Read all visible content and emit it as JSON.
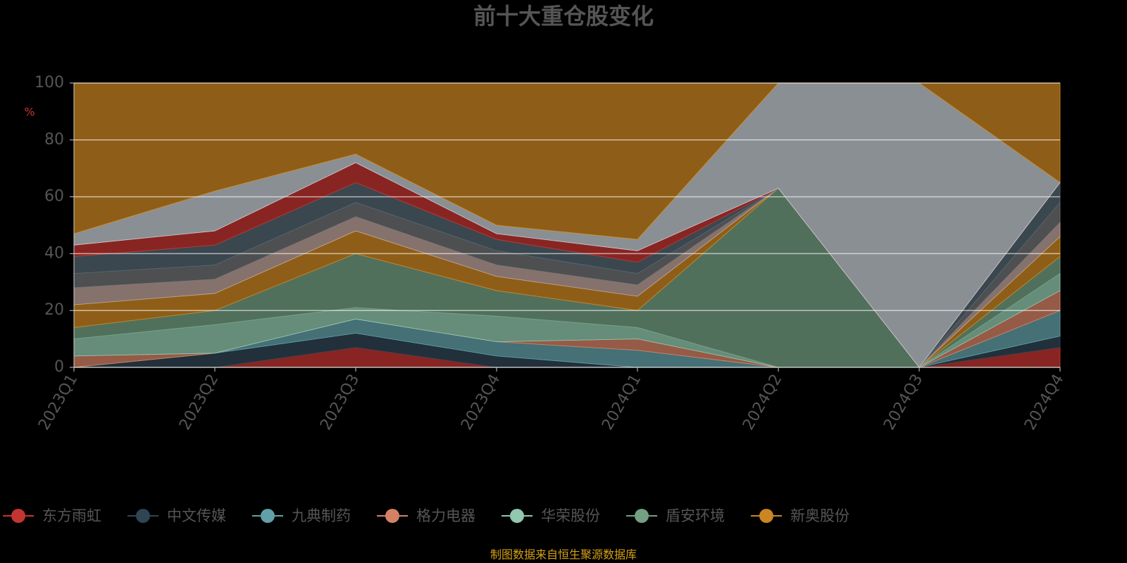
{
  "chart_data": {
    "type": "stacked-area",
    "title": "前十大重仓股变化",
    "y_label": "%",
    "source": "制图数据来自恒生聚源数据库",
    "categories": [
      "2023Q1",
      "2023Q2",
      "2023Q3",
      "2023Q4",
      "2024Q1",
      "2024Q2",
      "2024Q3",
      "2024Q4"
    ],
    "ylim": [
      0,
      100
    ],
    "yticks": [
      0,
      20,
      40,
      60,
      80,
      100
    ],
    "grid": true,
    "series": [
      {
        "name": "东方雨虹",
        "color": "#c23531",
        "values": [
          0,
          0,
          7,
          0,
          0,
          0,
          0,
          7
        ]
      },
      {
        "name": "中文传媒",
        "color": "#2f4554",
        "values": [
          0,
          5,
          5,
          4,
          0,
          0,
          0,
          4
        ]
      },
      {
        "name": "九典制药",
        "color": "#61a0a8",
        "values": [
          0,
          0,
          5,
          5,
          6,
          0,
          0,
          9
        ]
      },
      {
        "name": "格力电器",
        "color": "#d48265",
        "values": [
          4,
          0,
          0,
          0,
          4,
          0,
          0,
          7
        ]
      },
      {
        "name": "华荣股份",
        "color": "#91c7ae",
        "values": [
          6,
          10,
          4,
          9,
          4,
          0,
          0,
          6
        ]
      },
      {
        "name": "盾安环境",
        "color": "#749f83",
        "values": [
          4,
          5,
          19,
          9,
          6,
          63,
          0,
          6
        ]
      },
      {
        "name": "新奥股份",
        "color": "#ca8622",
        "values": [
          8,
          6,
          8,
          5,
          5,
          0,
          0,
          7
        ]
      },
      {
        "color": "#bda29a",
        "values": [
          6,
          5,
          5,
          4,
          4,
          0,
          0,
          5
        ]
      },
      {
        "color": "#6e7074",
        "values": [
          5,
          5,
          5,
          5,
          4,
          0,
          0,
          7
        ]
      },
      {
        "color": "#546570",
        "values": [
          6,
          7,
          7,
          4,
          4,
          0,
          0,
          7
        ]
      },
      {
        "color": "#c23531",
        "values": [
          4,
          5,
          7,
          2,
          4,
          0,
          0,
          0
        ]
      },
      {
        "color": "#c4ccd3",
        "values": [
          4,
          14,
          3,
          3,
          4,
          37,
          100,
          0
        ]
      },
      {
        "color": "#ca8622",
        "values": [
          53,
          38,
          25,
          50,
          55,
          0,
          0,
          35
        ]
      }
    ]
  }
}
